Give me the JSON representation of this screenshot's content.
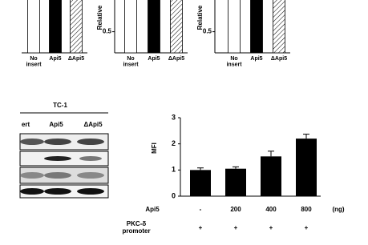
{
  "chart_data": [
    {
      "type": "bar",
      "categories": [
        "No\ninsert",
        "Api5",
        "ΔApi5"
      ],
      "values": [
        1.3,
        1.3,
        1.3
      ],
      "fills": [
        "#ffffff",
        "#000000",
        "hatch"
      ],
      "ylim": [
        0,
        1.25
      ],
      "yticks": []
    },
    {
      "type": "bar",
      "ylabel": "Relative",
      "categories": [
        "No\ninsert",
        "Api5",
        "ΔApi5"
      ],
      "values": [
        1.3,
        1.3,
        1.3
      ],
      "fills": [
        "#ffffff",
        "#000000",
        "hatch"
      ],
      "ylim": [
        0,
        1.25
      ],
      "yticks": [
        0.5
      ]
    },
    {
      "type": "bar",
      "ylabel": "Relative",
      "categories": [
        "No\ninsert",
        "Api5",
        "ΔApi5"
      ],
      "values": [
        1.3,
        1.3,
        1.3
      ],
      "fills": [
        "#ffffff",
        "#000000",
        "hatch"
      ],
      "ylim": [
        0,
        1.25
      ],
      "yticks": [
        0.5
      ]
    },
    {
      "type": "errorbar",
      "ylabel": "MFI",
      "values": [
        1.0,
        1.05,
        1.52,
        2.2
      ],
      "errors": [
        0.08,
        0.07,
        0.2,
        0.17
      ],
      "color": "#000000",
      "ylim": [
        0,
        3
      ],
      "yticks": [
        0,
        1,
        2,
        3
      ],
      "rows": [
        {
          "label": "Api5",
          "cells": [
            "-",
            "200",
            "400",
            "800"
          ],
          "unit": "(ng)"
        },
        {
          "label": "PKC-δ\npromoter",
          "cells": [
            "+",
            "+",
            "+",
            "+"
          ]
        }
      ]
    }
  ],
  "blot": {
    "title": "TC-1",
    "lanes": [
      "ert",
      "Api5",
      "ΔApi5"
    ]
  }
}
